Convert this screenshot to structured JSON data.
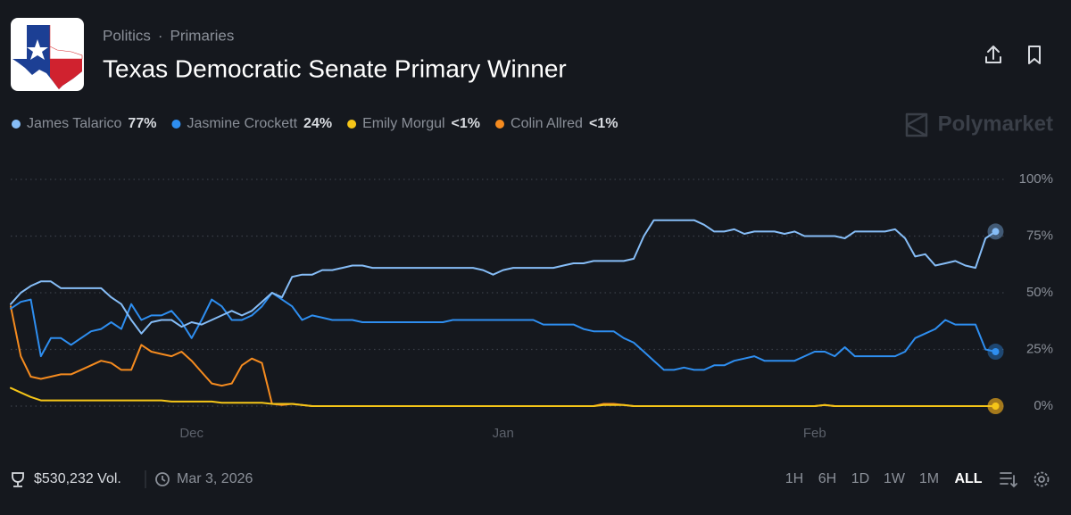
{
  "header": {
    "breadcrumb": [
      "Politics",
      "Primaries"
    ]
  },
  "chart_data": {
    "type": "line",
    "title": "Texas Democratic Senate Primary Winner",
    "categories": [
      null,
      null,
      null,
      null,
      null,
      null,
      null,
      null,
      null,
      null,
      null,
      null,
      null,
      null,
      null,
      null,
      null,
      null,
      "Dec",
      null,
      null,
      null,
      null,
      null,
      null,
      null,
      null,
      null,
      null,
      null,
      null,
      null,
      null,
      null,
      null,
      null,
      null,
      null,
      null,
      null,
      null,
      null,
      null,
      null,
      null,
      null,
      null,
      null,
      null,
      "Jan",
      null,
      null,
      null,
      null,
      null,
      null,
      null,
      null,
      null,
      null,
      null,
      null,
      null,
      null,
      null,
      null,
      null,
      null,
      null,
      null,
      null,
      null,
      null,
      null,
      null,
      null,
      null,
      null,
      null,
      null,
      "Feb",
      null,
      null,
      null,
      null,
      null,
      null,
      null,
      null,
      null,
      null,
      null,
      null,
      null,
      null,
      null,
      null,
      null,
      null
    ],
    "series": [
      {
        "name": "James Talarico",
        "label": "77%",
        "color": "#86bdf7",
        "values": [
          45,
          50,
          53,
          55,
          55,
          52,
          52,
          52,
          52,
          52,
          48,
          45,
          38,
          32,
          37,
          38,
          38,
          35,
          37,
          36,
          38,
          40,
          42,
          40,
          42,
          46,
          50,
          48,
          57,
          58,
          58,
          60,
          60,
          61,
          62,
          62,
          61,
          61,
          61,
          61,
          61,
          61,
          61,
          61,
          61,
          61,
          61,
          60,
          58,
          60,
          61,
          61,
          61,
          61,
          61,
          62,
          63,
          63,
          64,
          64,
          64,
          64,
          65,
          75,
          82,
          82,
          82,
          82,
          82,
          80,
          77,
          77,
          78,
          76,
          77,
          77,
          77,
          76,
          77,
          75,
          75,
          75,
          75,
          74,
          77,
          77,
          77,
          77,
          78,
          74,
          66,
          67,
          62,
          63,
          64,
          62,
          61,
          74,
          77
        ]
      },
      {
        "name": "Jasmine Crockett",
        "label": "24%",
        "color": "#2e8ef0",
        "values": [
          43,
          46,
          47,
          22,
          30,
          30,
          27,
          30,
          33,
          34,
          37,
          34,
          45,
          38,
          40,
          40,
          42,
          37,
          30,
          38,
          47,
          44,
          38,
          38,
          40,
          44,
          50,
          47,
          44,
          38,
          40,
          39,
          38,
          38,
          38,
          37,
          37,
          37,
          37,
          37,
          37,
          37,
          37,
          37,
          38,
          38,
          38,
          38,
          38,
          38,
          38,
          38,
          38,
          36,
          36,
          36,
          36,
          34,
          33,
          33,
          33,
          30,
          28,
          24,
          20,
          16,
          16,
          17,
          16,
          16,
          18,
          18,
          20,
          21,
          22,
          20,
          20,
          20,
          20,
          22,
          24,
          24,
          22,
          26,
          22,
          22,
          22,
          22,
          22,
          24,
          30,
          32,
          34,
          38,
          36,
          36,
          36,
          25,
          24
        ]
      },
      {
        "name": "Emily Morgul",
        "label": "<1%",
        "color": "#f5c518",
        "values": [
          8,
          6,
          4,
          2.5,
          2.5,
          2.5,
          2.5,
          2.5,
          2.5,
          2.5,
          2.5,
          2.5,
          2.5,
          2.5,
          2.5,
          2.5,
          2,
          2,
          2,
          2,
          2,
          1.5,
          1.5,
          1.5,
          1.5,
          1.5,
          1,
          1,
          1,
          0.5,
          0,
          0,
          0,
          0,
          0,
          0,
          0,
          0,
          0,
          0,
          0,
          0,
          0,
          0,
          0,
          0,
          0,
          0,
          0,
          0,
          0,
          0,
          0,
          0,
          0,
          0,
          0,
          0,
          0,
          0.5,
          0.5,
          0.5,
          0,
          0,
          0,
          0,
          0,
          0,
          0,
          0,
          0,
          0,
          0,
          0,
          0,
          0,
          0,
          0,
          0,
          0,
          0,
          0.5,
          0,
          0,
          0,
          0,
          0,
          0,
          0,
          0,
          0,
          0,
          0,
          0,
          0,
          0,
          0,
          0,
          0
        ]
      },
      {
        "name": "Colin Allred",
        "label": "<1%",
        "color": "#f58b1f",
        "values": [
          44,
          22,
          13,
          12,
          13,
          14,
          14,
          16,
          18,
          20,
          19,
          16,
          16,
          27,
          24,
          23,
          22,
          24,
          20,
          15,
          10,
          9,
          10,
          18,
          21,
          19,
          1,
          0.5,
          1,
          0.5,
          0,
          0,
          0,
          0,
          0,
          0,
          0,
          0,
          0,
          0,
          0,
          0,
          0,
          0,
          0,
          0,
          0,
          0,
          0,
          0,
          0,
          0,
          0,
          0,
          0,
          0,
          0,
          0,
          0,
          1,
          1,
          0.5,
          0,
          0,
          0,
          0,
          0,
          0,
          0,
          0,
          0,
          0,
          0,
          0,
          0,
          0,
          0,
          0,
          0,
          0,
          0,
          0.5,
          0,
          0,
          0,
          0,
          0,
          0,
          0,
          0,
          0,
          0,
          0,
          0,
          0,
          0,
          0,
          0,
          0
        ]
      }
    ],
    "ylim": [
      0,
      100
    ],
    "yticks": [
      {
        "value": 0,
        "label": "0%"
      },
      {
        "value": 25,
        "label": "25%"
      },
      {
        "value": 50,
        "label": "50%"
      },
      {
        "value": 75,
        "label": "75%"
      },
      {
        "value": 100,
        "label": "100%"
      }
    ],
    "grid": true
  },
  "watermark": "Polymarket",
  "footer": {
    "volume": "$530,232 Vol.",
    "date": "Mar 3, 2026",
    "ranges": [
      "1H",
      "6H",
      "1D",
      "1W",
      "1M",
      "ALL"
    ],
    "active_range": "ALL"
  }
}
